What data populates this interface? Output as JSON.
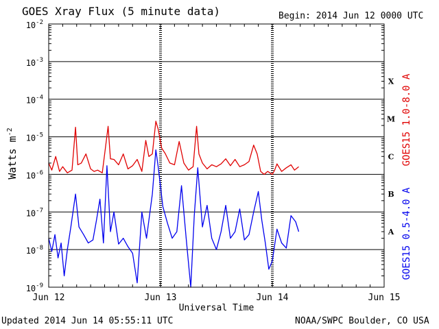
{
  "header": {
    "title": "GOES Xray Flux (5 minute data)",
    "begin": "Begin:  2014 Jun 12 0000 UTC"
  },
  "footer": {
    "updated": "Updated 2014 Jun 14 05:55:11 UTC",
    "credit": "NOAA/SWPC Boulder, CO USA"
  },
  "colors": {
    "long": "#e00000",
    "short": "#0000ee",
    "axis": "#000000"
  },
  "chart_data": {
    "type": "line",
    "title": "GOES Xray Flux (5 minute data)",
    "xlabel": "Universal Time",
    "ylabel": "Watts m",
    "ylabel_sup": "-2",
    "yscale": "log",
    "ylim": [
      1e-09,
      0.01
    ],
    "xlim": [
      "2014-06-12 00:00",
      "2014-06-15 00:00"
    ],
    "x_ticks": [
      "Jun 12",
      "Jun 13",
      "Jun 14",
      "Jun 15"
    ],
    "y_ticks": [
      {
        "base": "10",
        "exp": "-9",
        "value": 1e-09
      },
      {
        "base": "10",
        "exp": "-8",
        "value": 1e-08
      },
      {
        "base": "10",
        "exp": "-7",
        "value": 1e-07
      },
      {
        "base": "10",
        "exp": "-6",
        "value": 1e-06
      },
      {
        "base": "10",
        "exp": "-5",
        "value": 1e-05
      },
      {
        "base": "10",
        "exp": "-4",
        "value": 0.0001
      },
      {
        "base": "10",
        "exp": "-3",
        "value": 0.001
      },
      {
        "base": "10",
        "exp": "-2",
        "value": 0.01
      }
    ],
    "flare_classes": [
      {
        "label": "X",
        "value": 0.0003
      },
      {
        "label": "M",
        "value": 3e-05
      },
      {
        "label": "C",
        "value": 3e-06
      },
      {
        "label": "B",
        "value": 3e-07
      },
      {
        "label": "A",
        "value": 3e-08
      }
    ],
    "grid_levels": [
      1e-08,
      1e-07,
      1e-06,
      1e-05,
      0.0001,
      0.001
    ],
    "series": [
      {
        "name": "GOES15 1.0-8.0 A",
        "color": "#e00000",
        "x": [
          "2014-06-12 00:00",
          "2014-06-12 00:40",
          "2014-06-12 01:30",
          "2014-06-12 02:20",
          "2014-06-12 03:00",
          "2014-06-12 04:00",
          "2014-06-12 05:00",
          "2014-06-12 05:45",
          "2014-06-12 06:15",
          "2014-06-12 07:00",
          "2014-06-12 08:00",
          "2014-06-12 09:00",
          "2014-06-12 09:45",
          "2014-06-12 10:30",
          "2014-06-12 11:30",
          "2014-06-12 12:15",
          "2014-06-12 12:45",
          "2014-06-12 13:15",
          "2014-06-12 14:00",
          "2014-06-12 15:00",
          "2014-06-12 16:00",
          "2014-06-12 17:00",
          "2014-06-12 18:00",
          "2014-06-12 19:00",
          "2014-06-12 20:00",
          "2014-06-12 20:50",
          "2014-06-12 21:30",
          "2014-06-12 22:15",
          "2014-06-12 23:00",
          "2014-06-12 23:30",
          "2014-06-13 00:15",
          "2014-06-13 01:00",
          "2014-06-13 02:00",
          "2014-06-13 03:00",
          "2014-06-13 04:00",
          "2014-06-13 05:00",
          "2014-06-13 06:00",
          "2014-06-13 07:00",
          "2014-06-13 07:45",
          "2014-06-13 08:15",
          "2014-06-13 09:00",
          "2014-06-13 10:00",
          "2014-06-13 11:00",
          "2014-06-13 12:00",
          "2014-06-13 13:00",
          "2014-06-13 14:00",
          "2014-06-13 15:00",
          "2014-06-13 16:00",
          "2014-06-13 17:00",
          "2014-06-13 18:00",
          "2014-06-13 19:00",
          "2014-06-13 20:00",
          "2014-06-13 20:45",
          "2014-06-13 21:30",
          "2014-06-13 22:15",
          "2014-06-13 23:00",
          "2014-06-14 00:00",
          "2014-06-14 00:30",
          "2014-06-14 01:00",
          "2014-06-14 02:00",
          "2014-06-14 03:00",
          "2014-06-14 04:00",
          "2014-06-14 04:45",
          "2014-06-14 05:40"
        ],
        "values": [
          2e-06,
          1.3e-06,
          3e-06,
          1.2e-06,
          1.6e-06,
          1.1e-06,
          1.3e-06,
          1.8e-05,
          1.8e-06,
          2e-06,
          3.5e-06,
          1.4e-06,
          1.2e-06,
          1.3e-06,
          1.1e-06,
          6e-06,
          1.9e-05,
          2.6e-06,
          2.5e-06,
          1.8e-06,
          3.5e-06,
          1.4e-06,
          1.7e-06,
          2.5e-06,
          1.2e-06,
          8e-06,
          3e-06,
          3.5e-06,
          2.6e-05,
          1.6e-05,
          5e-06,
          3.6e-06,
          2e-06,
          1.8e-06,
          7.5e-06,
          2e-06,
          1.3e-06,
          1.6e-06,
          1.9e-05,
          3.5e-06,
          2e-06,
          1.4e-06,
          1.8e-06,
          1.6e-06,
          1.9e-06,
          2.6e-06,
          1.7e-06,
          2.5e-06,
          1.6e-06,
          1.8e-06,
          2.2e-06,
          6e-06,
          3.5e-06,
          1.2e-06,
          1e-06,
          1.2e-06,
          1e-06,
          1.3e-06,
          1.9e-06,
          1.2e-06,
          1.5e-06,
          1.8e-06,
          1.3e-06,
          1.6e-06
        ]
      },
      {
        "name": "GOES15 0.5-4.0 A",
        "color": "#0000ee",
        "x": [
          "2014-06-12 00:00",
          "2014-06-12 00:40",
          "2014-06-12 01:20",
          "2014-06-12 02:00",
          "2014-06-12 02:40",
          "2014-06-12 03:20",
          "2014-06-12 04:00",
          "2014-06-12 04:45",
          "2014-06-12 05:45",
          "2014-06-12 06:30",
          "2014-06-12 07:30",
          "2014-06-12 08:30",
          "2014-06-12 09:30",
          "2014-06-12 10:15",
          "2014-06-12 11:00",
          "2014-06-12 11:45",
          "2014-06-12 12:30",
          "2014-06-12 13:15",
          "2014-06-12 14:00",
          "2014-06-12 15:00",
          "2014-06-12 16:00",
          "2014-06-12 17:00",
          "2014-06-12 18:00",
          "2014-06-12 19:00",
          "2014-06-12 20:00",
          "2014-06-12 21:00",
          "2014-06-12 22:15",
          "2014-06-12 23:00",
          "2014-06-12 23:30",
          "2014-06-13 00:30",
          "2014-06-13 01:30",
          "2014-06-13 02:30",
          "2014-06-13 03:30",
          "2014-06-13 04:30",
          "2014-06-13 05:30",
          "2014-06-13 06:30",
          "2014-06-13 07:15",
          "2014-06-13 08:00",
          "2014-06-13 09:00",
          "2014-06-13 10:00",
          "2014-06-13 11:00",
          "2014-06-13 12:00",
          "2014-06-13 13:00",
          "2014-06-13 14:00",
          "2014-06-13 15:00",
          "2014-06-13 16:00",
          "2014-06-13 17:00",
          "2014-06-13 18:00",
          "2014-06-13 19:00",
          "2014-06-13 20:00",
          "2014-06-13 21:00",
          "2014-06-13 21:45",
          "2014-06-13 22:30",
          "2014-06-13 23:15",
          "2014-06-14 00:00",
          "2014-06-14 01:00",
          "2014-06-14 02:00",
          "2014-06-14 03:00",
          "2014-06-14 04:00",
          "2014-06-14 05:00",
          "2014-06-14 05:40"
        ],
        "values": [
          2e-08,
          9e-09,
          2.5e-08,
          6e-09,
          1.5e-08,
          2e-09,
          1e-08,
          4e-08,
          3e-07,
          4e-08,
          2.5e-08,
          1.5e-08,
          1.8e-08,
          6e-08,
          2.2e-07,
          1.5e-08,
          1.7e-06,
          3e-08,
          1e-07,
          1.4e-08,
          2e-08,
          1.2e-08,
          8e-09,
          1.3e-09,
          1e-07,
          2e-08,
          3e-07,
          4.5e-06,
          1.6e-06,
          1.4e-07,
          5e-08,
          2e-08,
          3e-08,
          5e-07,
          2e-08,
          1e-09,
          8e-08,
          1.5e-06,
          4e-08,
          1.5e-07,
          2e-08,
          1e-08,
          3e-08,
          1.5e-07,
          2e-08,
          3e-08,
          1.2e-07,
          1.8e-08,
          2.5e-08,
          1e-07,
          3.5e-07,
          6e-08,
          1.5e-08,
          3e-09,
          5e-09,
          3.5e-08,
          1.5e-08,
          1.1e-08,
          8e-08,
          5.5e-08,
          3e-08
        ]
      }
    ]
  }
}
